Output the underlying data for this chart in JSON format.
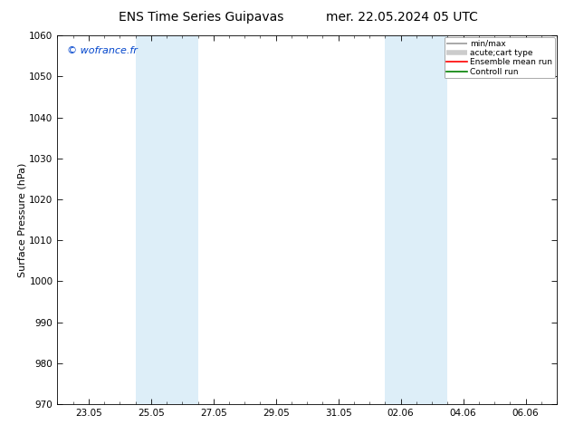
{
  "title": "ENS Time Series Guipavas",
  "title2": "mer. 22.05.2024 05 UTC",
  "ylabel": "Surface Pressure (hPa)",
  "ylim": [
    970,
    1060
  ],
  "yticks": [
    970,
    980,
    990,
    1000,
    1010,
    1020,
    1030,
    1040,
    1050,
    1060
  ],
  "xtick_labels": [
    "23.05",
    "25.05",
    "27.05",
    "29.05",
    "31.05",
    "02.06",
    "04.06",
    "06.06"
  ],
  "xtick_positions": [
    0,
    2,
    4,
    6,
    8,
    10,
    12,
    14
  ],
  "xlim": [
    -1,
    15
  ],
  "shaded_bands": [
    {
      "xmin": 1.5,
      "xmax": 3.5
    },
    {
      "xmin": 9.5,
      "xmax": 11.5
    }
  ],
  "band_color": "#ddeef8",
  "watermark": "© wofrance.fr",
  "watermark_color": "#0044cc",
  "watermark_fontsize": 8,
  "legend_items": [
    {
      "label": "min/max",
      "color": "#999999",
      "lw": 1.2
    },
    {
      "label": "acute;cart type",
      "color": "#cccccc",
      "lw": 4
    },
    {
      "label": "Ensemble mean run",
      "color": "red",
      "lw": 1.2
    },
    {
      "label": "Controll run",
      "color": "green",
      "lw": 1.2
    }
  ],
  "background_color": "#ffffff",
  "title_fontsize": 10,
  "axis_label_fontsize": 8,
  "tick_fontsize": 7.5
}
